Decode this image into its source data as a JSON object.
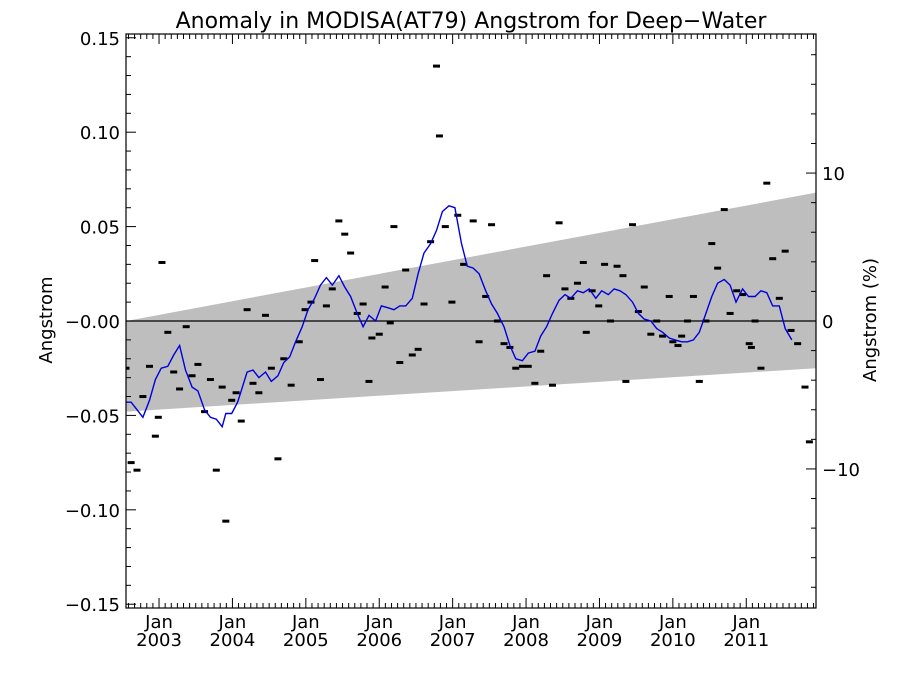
{
  "chart_data": {
    "type": "scatter",
    "title": "Anomaly in MODISA(AT79) Angstrom for Deep−Water",
    "ylabel": "Angstrom",
    "y2label": "Angstrom (%)",
    "xlabel": "",
    "xlim": [
      2002.55,
      2011.95
    ],
    "ylim": [
      -0.152,
      0.152
    ],
    "y2lim": [
      -19.4,
      19.4
    ],
    "grid": false,
    "y_ticks": [
      {
        "value": 0.15,
        "label": "0.15"
      },
      {
        "value": 0.1,
        "label": "0.10"
      },
      {
        "value": 0.05,
        "label": "0.05"
      },
      {
        "value": 0.0,
        "label": "−0.00"
      },
      {
        "value": -0.05,
        "label": "−0.05"
      },
      {
        "value": -0.1,
        "label": "−0.10"
      },
      {
        "value": -0.15,
        "label": "−0.15"
      }
    ],
    "y2_ticks": [
      {
        "value": 10,
        "label": "10"
      },
      {
        "value": 0,
        "label": "0"
      },
      {
        "value": -10,
        "label": "−10"
      }
    ],
    "x_ticks": [
      {
        "value": 2003.0,
        "month": "Jan",
        "year": "2003"
      },
      {
        "value": 2004.0,
        "month": "Jan",
        "year": "2004"
      },
      {
        "value": 2005.0,
        "month": "Jan",
        "year": "2005"
      },
      {
        "value": 2006.0,
        "month": "Jan",
        "year": "2006"
      },
      {
        "value": 2007.0,
        "month": "Jan",
        "year": "2007"
      },
      {
        "value": 2008.0,
        "month": "Jan",
        "year": "2008"
      },
      {
        "value": 2009.0,
        "month": "Jan",
        "year": "2009"
      },
      {
        "value": 2010.0,
        "month": "Jan",
        "year": "2010"
      },
      {
        "value": 2011.0,
        "month": "Jan",
        "year": "2011"
      }
    ],
    "uncertainty_band": {
      "color": "#bebebe",
      "x": [
        2002.55,
        2011.95
      ],
      "upper": [
        0.0,
        0.068
      ],
      "lower": [
        -0.048,
        -0.025
      ]
    },
    "series": [
      {
        "type": "scatter",
        "color": "#000000",
        "points": [
          [
            2002.55,
            -0.025
          ],
          [
            2002.62,
            -0.075
          ],
          [
            2002.7,
            -0.079
          ],
          [
            2002.78,
            -0.04
          ],
          [
            2002.87,
            -0.024
          ],
          [
            2002.95,
            -0.061
          ],
          [
            2002.99,
            -0.051
          ],
          [
            2003.04,
            0.031
          ],
          [
            2003.12,
            -0.006
          ],
          [
            2003.2,
            -0.027
          ],
          [
            2003.28,
            -0.036
          ],
          [
            2003.37,
            -0.003
          ],
          [
            2003.45,
            -0.029
          ],
          [
            2003.53,
            -0.023
          ],
          [
            2003.62,
            -0.048
          ],
          [
            2003.7,
            -0.031
          ],
          [
            2003.78,
            -0.079
          ],
          [
            2003.86,
            -0.035
          ],
          [
            2003.91,
            -0.106
          ],
          [
            2003.99,
            -0.042
          ],
          [
            2004.05,
            -0.038
          ],
          [
            2004.12,
            -0.053
          ],
          [
            2004.2,
            0.006
          ],
          [
            2004.28,
            -0.033
          ],
          [
            2004.36,
            -0.038
          ],
          [
            2004.45,
            0.003
          ],
          [
            2004.53,
            -0.025
          ],
          [
            2004.62,
            -0.073
          ],
          [
            2004.7,
            -0.02
          ],
          [
            2004.8,
            -0.034
          ],
          [
            2004.91,
            -0.011
          ],
          [
            2004.99,
            0.006
          ],
          [
            2005.07,
            0.01
          ],
          [
            2005.12,
            0.032
          ],
          [
            2005.2,
            -0.031
          ],
          [
            2005.28,
            0.008
          ],
          [
            2005.36,
            0.017
          ],
          [
            2005.45,
            0.053
          ],
          [
            2005.53,
            0.046
          ],
          [
            2005.61,
            0.036
          ],
          [
            2005.7,
            0.004
          ],
          [
            2005.78,
            0.009
          ],
          [
            2005.86,
            -0.032
          ],
          [
            2005.9,
            -0.009
          ],
          [
            2006.0,
            -0.007
          ],
          [
            2006.08,
            0.018
          ],
          [
            2006.15,
            -0.001
          ],
          [
            2006.2,
            0.05
          ],
          [
            2006.28,
            -0.022
          ],
          [
            2006.36,
            0.027
          ],
          [
            2006.45,
            -0.018
          ],
          [
            2006.53,
            -0.015
          ],
          [
            2006.61,
            0.009
          ],
          [
            2006.7,
            0.042
          ],
          [
            2006.78,
            0.135
          ],
          [
            2006.82,
            0.098
          ],
          [
            2006.9,
            0.05
          ],
          [
            2006.99,
            0.01
          ],
          [
            2007.07,
            0.056
          ],
          [
            2007.15,
            0.03
          ],
          [
            2007.28,
            0.053
          ],
          [
            2007.36,
            -0.011
          ],
          [
            2007.45,
            0.013
          ],
          [
            2007.53,
            0.051
          ],
          [
            2007.61,
            0.0
          ],
          [
            2007.7,
            -0.012
          ],
          [
            2007.78,
            -0.014
          ],
          [
            2007.86,
            -0.025
          ],
          [
            2007.95,
            -0.024
          ],
          [
            2008.03,
            -0.024
          ],
          [
            2008.12,
            -0.033
          ],
          [
            2008.2,
            -0.016
          ],
          [
            2008.28,
            0.024
          ],
          [
            2008.36,
            -0.034
          ],
          [
            2008.45,
            0.052
          ],
          [
            2008.53,
            0.017
          ],
          [
            2008.61,
            0.012
          ],
          [
            2008.7,
            0.02
          ],
          [
            2008.78,
            0.031
          ],
          [
            2008.82,
            -0.006
          ],
          [
            2008.9,
            0.016
          ],
          [
            2008.99,
            0.008
          ],
          [
            2009.07,
            0.03
          ],
          [
            2009.15,
            0.0
          ],
          [
            2009.24,
            0.029
          ],
          [
            2009.32,
            0.024
          ],
          [
            2009.36,
            -0.032
          ],
          [
            2009.45,
            0.051
          ],
          [
            2009.53,
            0.005
          ],
          [
            2009.61,
            0.018
          ],
          [
            2009.7,
            -0.007
          ],
          [
            2009.78,
            0.0
          ],
          [
            2009.86,
            -0.008
          ],
          [
            2009.95,
            0.013
          ],
          [
            2010.0,
            -0.011
          ],
          [
            2010.07,
            -0.013
          ],
          [
            2010.12,
            -0.008
          ],
          [
            2010.2,
            0.0
          ],
          [
            2010.28,
            0.013
          ],
          [
            2010.36,
            -0.032
          ],
          [
            2010.45,
            0.0
          ],
          [
            2010.53,
            0.041
          ],
          [
            2010.61,
            0.028
          ],
          [
            2010.7,
            0.059
          ],
          [
            2010.78,
            0.004
          ],
          [
            2010.87,
            0.016
          ],
          [
            2010.95,
            0.014
          ],
          [
            2011.04,
            -0.012
          ],
          [
            2011.07,
            -0.014
          ],
          [
            2011.12,
            0.0
          ],
          [
            2011.2,
            -0.025
          ],
          [
            2011.28,
            0.073
          ],
          [
            2011.36,
            0.033
          ],
          [
            2011.45,
            0.012
          ],
          [
            2011.53,
            0.037
          ],
          [
            2011.61,
            -0.005
          ],
          [
            2011.7,
            -0.012
          ],
          [
            2011.8,
            -0.035
          ],
          [
            2011.86,
            -0.064
          ]
        ]
      },
      {
        "type": "line",
        "color": "#0000dd",
        "points": [
          [
            2002.55,
            -0.043
          ],
          [
            2002.62,
            -0.043
          ],
          [
            2002.7,
            -0.047
          ],
          [
            2002.78,
            -0.051
          ],
          [
            2002.87,
            -0.042
          ],
          [
            2002.95,
            -0.031
          ],
          [
            2003.03,
            -0.025
          ],
          [
            2003.12,
            -0.024
          ],
          [
            2003.2,
            -0.018
          ],
          [
            2003.28,
            -0.013
          ],
          [
            2003.36,
            -0.026
          ],
          [
            2003.45,
            -0.035
          ],
          [
            2003.53,
            -0.037
          ],
          [
            2003.62,
            -0.047
          ],
          [
            2003.7,
            -0.051
          ],
          [
            2003.78,
            -0.052
          ],
          [
            2003.86,
            -0.056
          ],
          [
            2003.91,
            -0.049
          ],
          [
            2003.99,
            -0.049
          ],
          [
            2004.07,
            -0.043
          ],
          [
            2004.12,
            -0.037
          ],
          [
            2004.2,
            -0.027
          ],
          [
            2004.28,
            -0.026
          ],
          [
            2004.36,
            -0.03
          ],
          [
            2004.45,
            -0.027
          ],
          [
            2004.53,
            -0.032
          ],
          [
            2004.62,
            -0.029
          ],
          [
            2004.7,
            -0.022
          ],
          [
            2004.78,
            -0.019
          ],
          [
            2004.86,
            -0.011
          ],
          [
            2004.95,
            -0.003
          ],
          [
            2005.03,
            0.006
          ],
          [
            2005.12,
            0.012
          ],
          [
            2005.2,
            0.019
          ],
          [
            2005.28,
            0.023
          ],
          [
            2005.36,
            0.019
          ],
          [
            2005.45,
            0.024
          ],
          [
            2005.53,
            0.018
          ],
          [
            2005.61,
            0.013
          ],
          [
            2005.7,
            0.004
          ],
          [
            2005.78,
            -0.003
          ],
          [
            2005.86,
            0.003
          ],
          [
            2005.95,
            0.0
          ],
          [
            2006.03,
            0.008
          ],
          [
            2006.12,
            0.007
          ],
          [
            2006.2,
            0.006
          ],
          [
            2006.28,
            0.008
          ],
          [
            2006.36,
            0.008
          ],
          [
            2006.45,
            0.012
          ],
          [
            2006.53,
            0.025
          ],
          [
            2006.61,
            0.036
          ],
          [
            2006.7,
            0.041
          ],
          [
            2006.78,
            0.048
          ],
          [
            2006.86,
            0.058
          ],
          [
            2006.95,
            0.061
          ],
          [
            2007.03,
            0.06
          ],
          [
            2007.12,
            0.041
          ],
          [
            2007.2,
            0.029
          ],
          [
            2007.28,
            0.028
          ],
          [
            2007.36,
            0.025
          ],
          [
            2007.45,
            0.016
          ],
          [
            2007.53,
            0.009
          ],
          [
            2007.61,
            0.004
          ],
          [
            2007.7,
            -0.003
          ],
          [
            2007.78,
            -0.013
          ],
          [
            2007.86,
            -0.02
          ],
          [
            2007.95,
            -0.021
          ],
          [
            2008.03,
            -0.017
          ],
          [
            2008.12,
            -0.016
          ],
          [
            2008.2,
            -0.008
          ],
          [
            2008.28,
            -0.003
          ],
          [
            2008.36,
            0.004
          ],
          [
            2008.45,
            0.011
          ],
          [
            2008.53,
            0.014
          ],
          [
            2008.61,
            0.012
          ],
          [
            2008.7,
            0.016
          ],
          [
            2008.78,
            0.015
          ],
          [
            2008.86,
            0.017
          ],
          [
            2008.95,
            0.012
          ],
          [
            2009.03,
            0.016
          ],
          [
            2009.12,
            0.014
          ],
          [
            2009.2,
            0.017
          ],
          [
            2009.28,
            0.016
          ],
          [
            2009.36,
            0.014
          ],
          [
            2009.45,
            0.01
          ],
          [
            2009.53,
            0.004
          ],
          [
            2009.61,
            0.001
          ],
          [
            2009.7,
            0.0
          ],
          [
            2009.78,
            -0.004
          ],
          [
            2009.86,
            -0.006
          ],
          [
            2009.95,
            -0.009
          ],
          [
            2010.03,
            -0.01
          ],
          [
            2010.12,
            -0.011
          ],
          [
            2010.2,
            -0.011
          ],
          [
            2010.28,
            -0.01
          ],
          [
            2010.36,
            -0.006
          ],
          [
            2010.45,
            0.004
          ],
          [
            2010.53,
            0.013
          ],
          [
            2010.61,
            0.02
          ],
          [
            2010.7,
            0.022
          ],
          [
            2010.78,
            0.019
          ],
          [
            2010.86,
            0.01
          ],
          [
            2010.95,
            0.017
          ],
          [
            2011.03,
            0.013
          ],
          [
            2011.12,
            0.013
          ],
          [
            2011.2,
            0.016
          ],
          [
            2011.28,
            0.015
          ],
          [
            2011.36,
            0.008
          ],
          [
            2011.45,
            0.008
          ],
          [
            2011.53,
            -0.004
          ],
          [
            2011.62,
            -0.01
          ]
        ]
      }
    ],
    "zero_line": 0
  }
}
